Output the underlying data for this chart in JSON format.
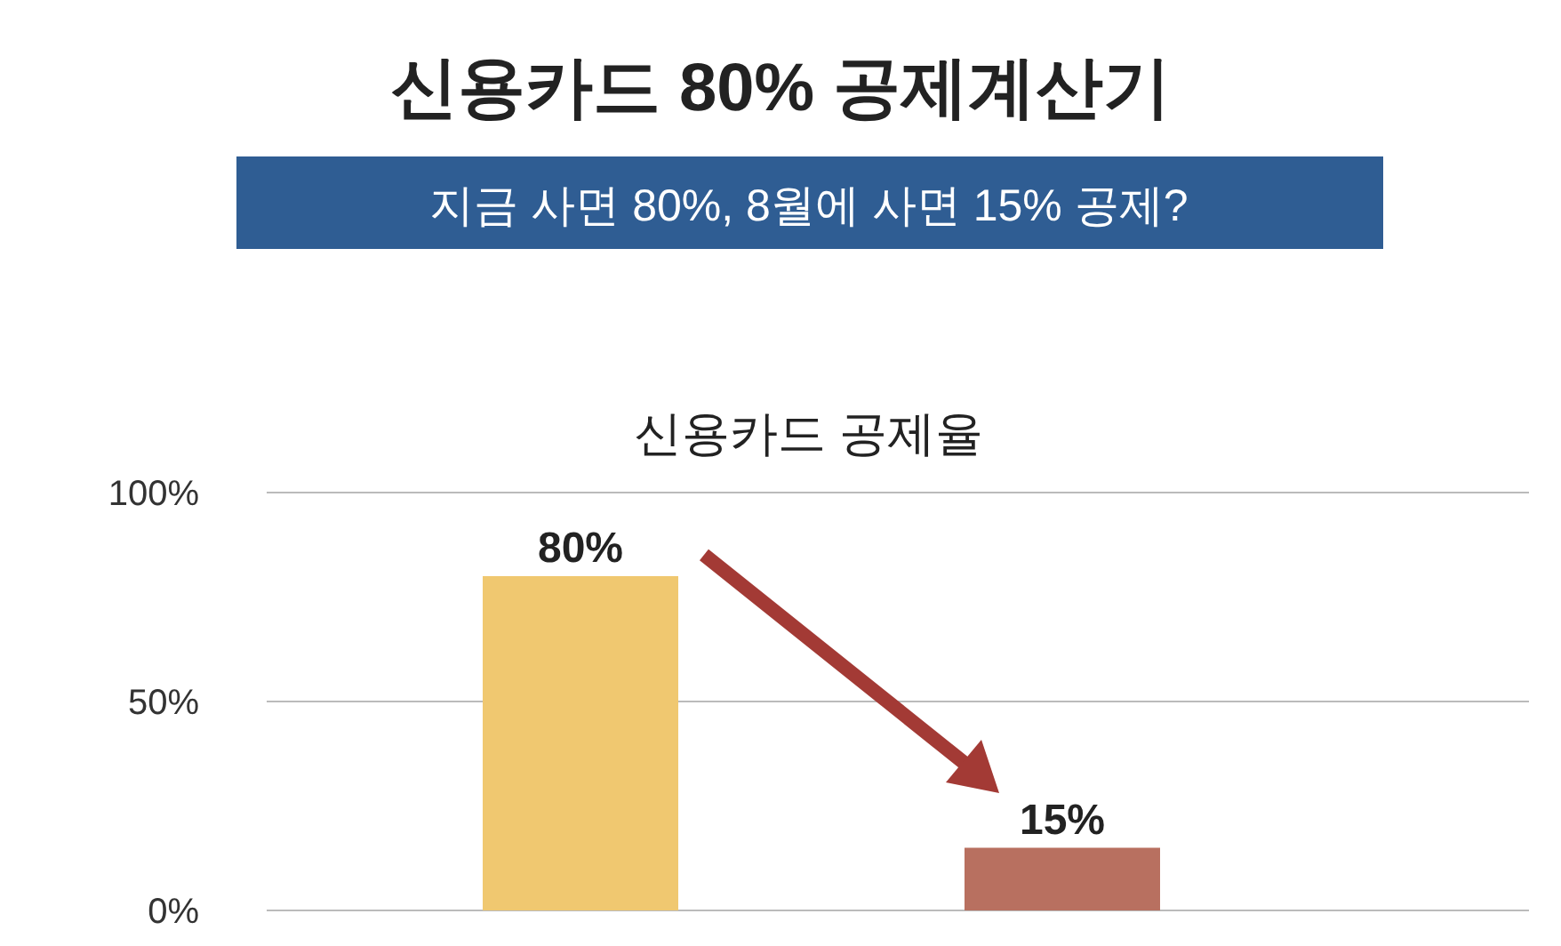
{
  "chart_data": {
    "type": "bar",
    "title": "신용카드 80% 공제계산기",
    "subtitle": "지금 사면 80%, 8월에 사면 15% 공제?",
    "annotations": [
      "신용카드 공제율"
    ],
    "categories": [
      null,
      null
    ],
    "values": [
      80,
      15
    ],
    "colors": [
      "#f0c870",
      "#b87060"
    ],
    "value_labels": [
      "80%",
      "15%"
    ],
    "ylim": [
      0,
      100
    ],
    "yticks": [
      {
        "value": 0,
        "label": "0%"
      },
      {
        "value": 50,
        "label": "50%"
      },
      {
        "value": 100,
        "label": "100%"
      }
    ],
    "grid": "y"
  }
}
